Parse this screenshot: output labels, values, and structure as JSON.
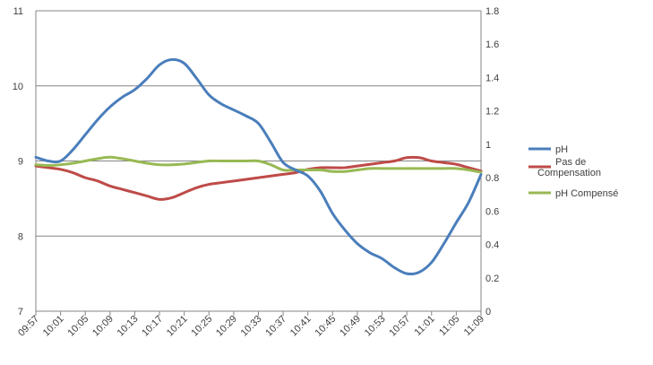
{
  "chart_data": {
    "type": "line",
    "title": "",
    "xlabel": "",
    "ylabel": "",
    "x": [
      "09:57",
      "09:59",
      "10:01",
      "10:03",
      "10:05",
      "10:07",
      "10:09",
      "10:11",
      "10:13",
      "10:15",
      "10:17",
      "10:19",
      "10:21",
      "10:23",
      "10:25",
      "10:27",
      "10:29",
      "10:31",
      "10:33",
      "10:35",
      "10:37",
      "10:39",
      "10:41",
      "10:43",
      "10:45",
      "10:47",
      "10:49",
      "10:51",
      "10:53",
      "10:55",
      "10:57",
      "10:59",
      "11:01",
      "11:03",
      "11:05",
      "11:07",
      "11:09"
    ],
    "x_tick_labels": [
      "09:57",
      "10:01",
      "10:05",
      "10:09",
      "10:13",
      "10:17",
      "10:21",
      "10:25",
      "10:29",
      "10:33",
      "10:37",
      "10:41",
      "10:45",
      "10:49",
      "10:53",
      "10:57",
      "11:01",
      "11:05",
      "11:09"
    ],
    "y_left": {
      "min": 7,
      "max": 11,
      "ticks": [
        "7",
        "8",
        "9",
        "10",
        "11"
      ]
    },
    "y_right": {
      "min": 0,
      "max": 1.8,
      "ticks": [
        "0",
        "0.2",
        "0.4",
        "0.6",
        "0.8",
        "1",
        "1.2",
        "1.4",
        "1.6",
        "1.8"
      ]
    },
    "grid": "horizontal",
    "legend_position": "right",
    "series": [
      {
        "name": "pH",
        "axis": "left",
        "color": "#4a7ebb",
        "values": [
          9.05,
          9.0,
          9.0,
          9.15,
          9.35,
          9.55,
          9.72,
          9.85,
          9.95,
          10.1,
          10.28,
          10.35,
          10.3,
          10.1,
          9.88,
          9.76,
          9.68,
          9.6,
          9.5,
          9.25,
          8.98,
          8.88,
          8.8,
          8.6,
          8.3,
          8.08,
          7.9,
          7.78,
          7.7,
          7.58,
          7.5,
          7.52,
          7.65,
          7.9,
          8.18,
          8.45,
          8.82
        ]
      },
      {
        "name": "Pas de Compensation",
        "axis": "right",
        "color": "#be4b48",
        "values": [
          0.87,
          0.86,
          0.85,
          0.83,
          0.8,
          0.78,
          0.75,
          0.73,
          0.71,
          0.69,
          0.67,
          0.68,
          0.71,
          0.74,
          0.76,
          0.77,
          0.78,
          0.79,
          0.8,
          0.81,
          0.82,
          0.83,
          0.85,
          0.86,
          0.86,
          0.86,
          0.87,
          0.88,
          0.89,
          0.9,
          0.92,
          0.92,
          0.9,
          0.89,
          0.88,
          0.86,
          0.84
        ]
      },
      {
        "name": "pH Compensé",
        "axis": "left",
        "color": "#98b954",
        "values": [
          8.95,
          8.94,
          8.95,
          8.97,
          9.0,
          9.03,
          9.05,
          9.03,
          9.0,
          8.97,
          8.95,
          8.95,
          8.96,
          8.98,
          9.0,
          9.0,
          9.0,
          9.0,
          9.0,
          8.95,
          8.88,
          8.88,
          8.88,
          8.88,
          8.86,
          8.86,
          8.88,
          8.9,
          8.9,
          8.9,
          8.9,
          8.9,
          8.9,
          8.9,
          8.9,
          8.88,
          8.85
        ]
      }
    ]
  }
}
